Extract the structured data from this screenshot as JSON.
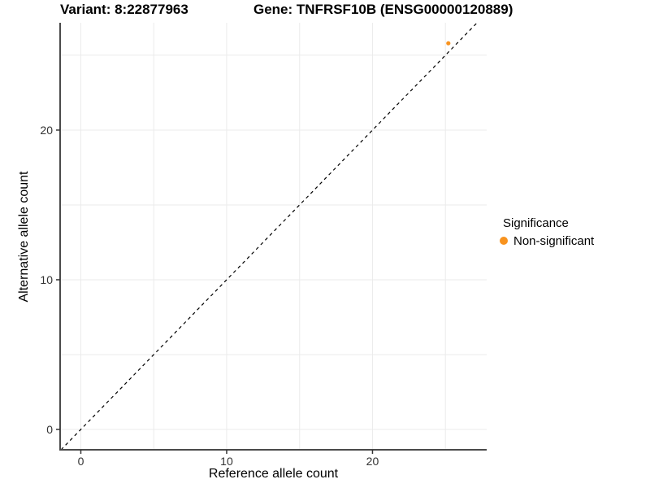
{
  "figure": {
    "title_variant": "Variant: 8:22877963",
    "title_gene": "Gene: TNFRSF10B (ENSG00000120889)"
  },
  "chart_data": {
    "type": "scatter",
    "title": "Variant: 8:22877963  Gene: TNFRSF10B (ENSG00000120889)",
    "xlabel": "Reference allele count",
    "ylabel": "Alternative allele count",
    "xlim": [
      -1.42,
      27.83
    ],
    "ylim": [
      -1.36,
      27.17
    ],
    "x_ticks": [
      0,
      10,
      20
    ],
    "y_ticks": [
      0,
      10,
      20
    ],
    "x_grid": [
      0,
      5,
      10,
      15,
      20,
      25
    ],
    "y_grid": [
      0,
      5,
      10,
      15,
      20,
      25
    ],
    "grid": true,
    "series": [
      {
        "name": "Non-significant",
        "color": "#F8931F",
        "points": [
          {
            "x": 25.2,
            "y": 25.8
          }
        ]
      }
    ],
    "reference_line": {
      "type": "identity y=x",
      "style": "dashed",
      "color": "#000000",
      "dash": "4,4"
    },
    "legend": {
      "position": "right",
      "title": "Significance",
      "entries": [
        {
          "label": "Non-significant",
          "color": "#F8931F"
        }
      ]
    },
    "colors": {
      "grid": "#EBEBEB",
      "axis_line": "#4A4A4A",
      "tick_mark": "#333333",
      "tick_label": "#333333",
      "point": "#F8931F"
    }
  }
}
